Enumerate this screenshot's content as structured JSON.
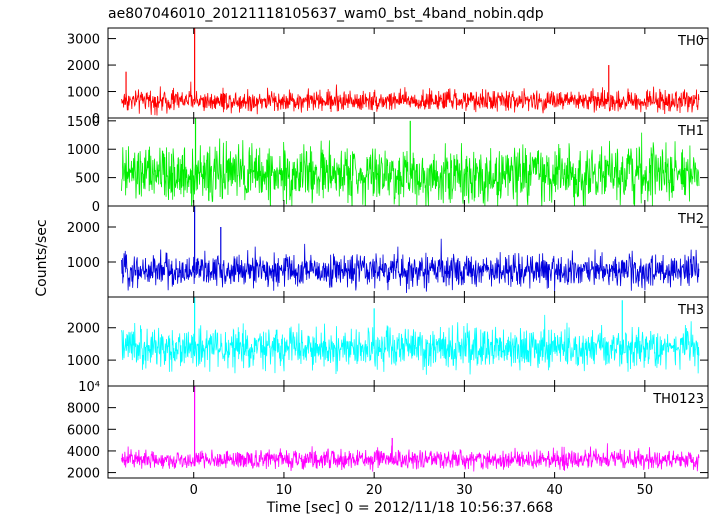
{
  "title": "ae807046010_20121118105637_wam0_bst_4band_nobin.qdp",
  "ylabel": "Counts/sec",
  "xlabel": "Time [sec] 0 = 2012/11/18 10:56:37.668",
  "chart_data": {
    "type": "line",
    "title": "ae807046010_20121118105637_wam0_bst_4band_nobin.qdp",
    "xlabel": "Time [sec] 0 = 2012/11/18 10:56:37.668",
    "ylabel": "Counts/sec",
    "xlim": [
      -9.5,
      57
    ],
    "xticks": [
      0,
      10,
      20,
      30,
      40,
      50
    ],
    "xtick_labels": [
      "0",
      "10",
      "20",
      "30",
      "40",
      "50"
    ],
    "x_start": -8,
    "x_end": 56,
    "panels": [
      {
        "name": "TH0",
        "color": "#ff0000",
        "ylim": [
          0,
          3400
        ],
        "yticks": [
          0,
          1000,
          2000,
          3000
        ],
        "ytick_labels": [
          "0",
          "1000",
          "2000",
          "3000"
        ],
        "baseline": 650,
        "spread": 420,
        "spikes": [
          {
            "x": 0.1,
            "y": 3400
          },
          {
            "x": 46,
            "y": 2000
          },
          {
            "x": -7.5,
            "y": 1750
          }
        ]
      },
      {
        "name": "TH1",
        "color": "#00ee00",
        "ylim": [
          0,
          1550
        ],
        "yticks": [
          0,
          500,
          1000,
          1500
        ],
        "ytick_labels": [
          "0",
          "500",
          "1000",
          "1500"
        ],
        "baseline": 550,
        "spread": 520,
        "spikes": [
          {
            "x": 0.2,
            "y": 1550
          },
          {
            "x": 24,
            "y": 1500
          }
        ]
      },
      {
        "name": "TH2",
        "color": "#0000dd",
        "ylim": [
          0,
          2600
        ],
        "yticks": [
          1000,
          2000
        ],
        "ytick_labels": [
          "1000",
          "2000"
        ],
        "baseline": 750,
        "spread": 480,
        "spikes": [
          {
            "x": 0.1,
            "y": 2600
          },
          {
            "x": 3,
            "y": 2000
          }
        ]
      },
      {
        "name": "TH3",
        "color": "#00ffff",
        "ylim": [
          200,
          2950
        ],
        "yticks": [
          1000,
          2000
        ],
        "ytick_labels": [
          "1000",
          "2000"
        ],
        "baseline": 1350,
        "spread": 650,
        "spikes": [
          {
            "x": 0.1,
            "y": 2950
          },
          {
            "x": 47.5,
            "y": 2850
          },
          {
            "x": 20,
            "y": 2600
          }
        ]
      },
      {
        "name": "TH0123",
        "color": "#ff00ff",
        "ylim": [
          1500,
          10000
        ],
        "yticks": [
          2000,
          4000,
          6000,
          8000,
          10000
        ],
        "ytick_labels": [
          "2000",
          "4000",
          "6000",
          "8000",
          "10⁴"
        ],
        "baseline": 3200,
        "spread": 900,
        "spikes": [
          {
            "x": 0.1,
            "y": 10000
          },
          {
            "x": 22,
            "y": 5200
          }
        ]
      }
    ]
  }
}
